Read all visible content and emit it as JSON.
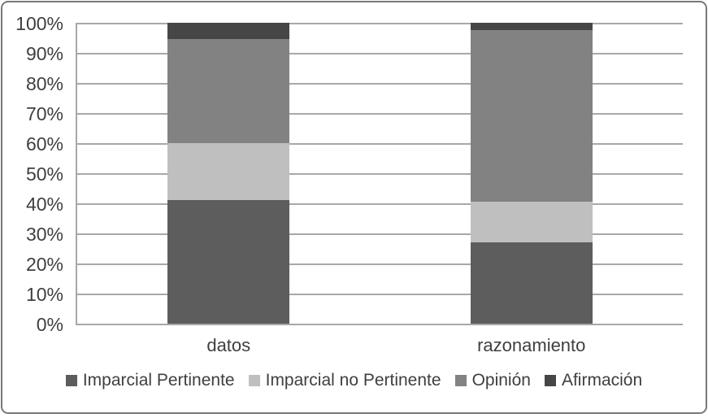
{
  "figure": {
    "border_color": "#787878",
    "background": "#ffffff",
    "text_color": "#3f3f3f",
    "gridline_color": "#a8a8a8"
  },
  "chart_data": {
    "type": "bar",
    "subtype": "stacked-100-percent-column",
    "title": "",
    "xlabel": "",
    "ylabel": "",
    "categories": [
      "datos",
      "razonamiento"
    ],
    "series": [
      {
        "name": "Imparcial Pertinente",
        "color": "#5d5d5d",
        "values": [
          41.0,
          27.0
        ]
      },
      {
        "name": "Imparcial no Pertinente",
        "color": "#bfbfbf",
        "values": [
          19.0,
          13.5
        ]
      },
      {
        "name": "Opinión",
        "color": "#828282",
        "values": [
          34.5,
          57.0
        ]
      },
      {
        "name": "Afirmación",
        "color": "#464646",
        "values": [
          5.5,
          2.5
        ]
      }
    ],
    "stack_order": "first-series-at-bottom",
    "y_ticks": [
      "0%",
      "10%",
      "20%",
      "30%",
      "40%",
      "50%",
      "60%",
      "70%",
      "80%",
      "90%",
      "100%"
    ],
    "ylim": [
      0,
      100
    ],
    "grid": true,
    "legend_position": "bottom",
    "legend": [
      "Imparcial Pertinente",
      "Imparcial no Pertinente",
      "Opinión",
      "Afirmación"
    ]
  }
}
